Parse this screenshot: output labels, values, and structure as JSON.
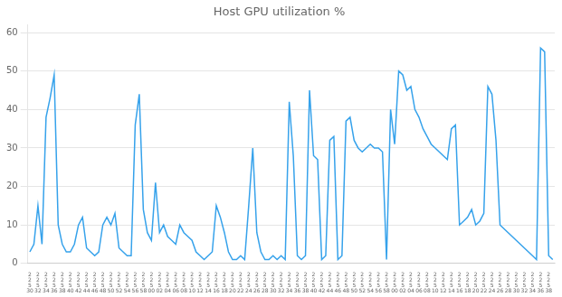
{
  "chart_data": {
    "type": "line",
    "title": "Host GPU utilization %",
    "categories": [
      "2\n2\n5\n30",
      null,
      "2\n2\n5\n32",
      null,
      "2\n2\n5\n34",
      null,
      "2\n2\n5\n36",
      null,
      "2\n2\n5\n38",
      null,
      "2\n2\n5\n40",
      null,
      "2\n2\n5\n42",
      null,
      "2\n2\n5\n44",
      null,
      "2\n2\n5\n46",
      null,
      "2\n2\n5\n48",
      null,
      "2\n2\n5\n50",
      null,
      "2\n2\n5\n52",
      null,
      "2\n2\n5\n54",
      null,
      "2\n2\n5\n56",
      null,
      "2\n2\n5\n58",
      null,
      "2\n2\n5\n00",
      null,
      "2\n2\n5\n02",
      null,
      "2\n2\n5\n04",
      null,
      "2\n2\n5\n06",
      null,
      "2\n2\n5\n08",
      null,
      "2\n2\n5\n10",
      null,
      "2\n2\n5\n12",
      null,
      "2\n2\n5\n14",
      null,
      "2\n2\n5\n16",
      null,
      "2\n2\n5\n18",
      null,
      "2\n2\n5\n20",
      null,
      "2\n2\n5\n22",
      null,
      "2\n2\n5\n24",
      null,
      "2\n2\n5\n26",
      null,
      "2\n2\n5\n28",
      null,
      "2\n2\n5\n30",
      null,
      "2\n2\n5\n32",
      null,
      "2\n2\n5\n34",
      null,
      "2\n2\n5\n36",
      null,
      "2\n2\n5\n38",
      null,
      "2\n2\n5\n40",
      null,
      "2\n2\n5\n42",
      null,
      "2\n2\n5\n44",
      null,
      "2\n2\n5\n46",
      null,
      "2\n2\n5\n48",
      null,
      "2\n2\n5\n50",
      null,
      "2\n2\n5\n52",
      null,
      "2\n2\n5\n54",
      null,
      "2\n2\n5\n56",
      null,
      "2\n2\n5\n58",
      null,
      "2\n2\n5\n00",
      null,
      "2\n2\n5\n02",
      null,
      "2\n2\n5\n04",
      null,
      "2\n2\n5\n06",
      null,
      "2\n2\n5\n08",
      null,
      "2\n2\n5\n10",
      null,
      "2\n2\n5\n12",
      null,
      "2\n2\n5\n14",
      null,
      "2\n2\n5\n16",
      null,
      "2\n2\n5\n18",
      null,
      "2\n2\n5\n20",
      null,
      "2\n2\n5\n22",
      null,
      "2\n2\n5\n24",
      null,
      "2\n2\n5\n26",
      null,
      "2\n2\n5\n28",
      null,
      "2\n2\n5\n30",
      null,
      "2\n2\n5\n32",
      null,
      "2\n2\n5\n34",
      null,
      "2\n2\n5\n36",
      null,
      "2\n2\n5\n38",
      null
    ],
    "values": [
      3,
      5,
      15,
      5,
      38,
      43,
      49,
      10,
      5,
      3,
      3,
      5,
      10,
      12,
      4,
      3,
      2,
      3,
      10,
      12,
      10,
      13,
      4,
      3,
      2,
      2,
      36,
      44,
      14,
      8,
      6,
      21,
      8,
      10,
      7,
      6,
      5,
      10,
      8,
      7,
      6,
      3,
      2,
      1,
      2,
      3,
      15,
      12,
      8,
      3,
      1,
      1,
      2,
      1,
      15,
      30,
      8,
      3,
      1,
      1,
      2,
      1,
      2,
      1,
      42,
      28,
      2,
      1,
      2,
      45,
      28,
      27,
      1,
      2,
      32,
      33,
      1,
      2,
      37,
      38,
      32,
      30,
      29,
      30,
      31,
      30,
      30,
      29,
      1,
      40,
      31,
      50,
      49,
      45,
      46,
      40,
      38,
      35,
      33,
      31,
      30,
      29,
      28,
      27,
      35,
      36,
      10,
      11,
      12,
      14,
      10,
      11,
      13,
      46,
      44,
      32,
      10,
      9,
      8,
      7,
      6,
      5,
      4,
      3,
      2,
      1,
      56,
      55,
      2,
      1
    ],
    "ylim": [
      0,
      62
    ],
    "yticks": [
      0,
      10,
      20,
      30,
      40,
      50,
      60
    ],
    "grid": true
  }
}
